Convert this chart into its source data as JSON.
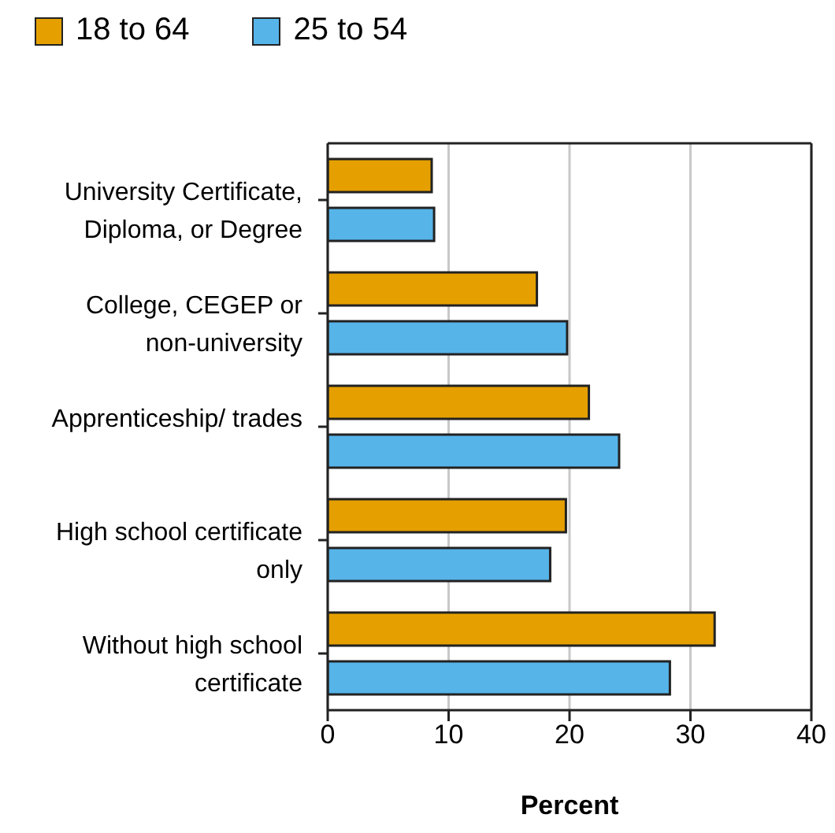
{
  "chart_data": {
    "type": "bar",
    "orientation": "horizontal",
    "xlabel": "Percent",
    "categories": [
      "University Certificate, Diploma, or Degree",
      "College, CEGEP or non-university",
      "Apprenticeship/ trades",
      "High school certificate only",
      "Without high school certificate"
    ],
    "series": [
      {
        "name": "18 to 64",
        "color": "#e5a000",
        "values": [
          8.6,
          17.3,
          21.6,
          19.7,
          32.0
        ]
      },
      {
        "name": "25 to 54",
        "color": "#56b4e9",
        "values": [
          8.8,
          19.8,
          24.1,
          18.4,
          28.3
        ]
      }
    ],
    "xlim": [
      0,
      40
    ],
    "xticks": [
      0,
      10,
      20,
      30,
      40
    ],
    "grid": "x",
    "legend": "top left"
  }
}
